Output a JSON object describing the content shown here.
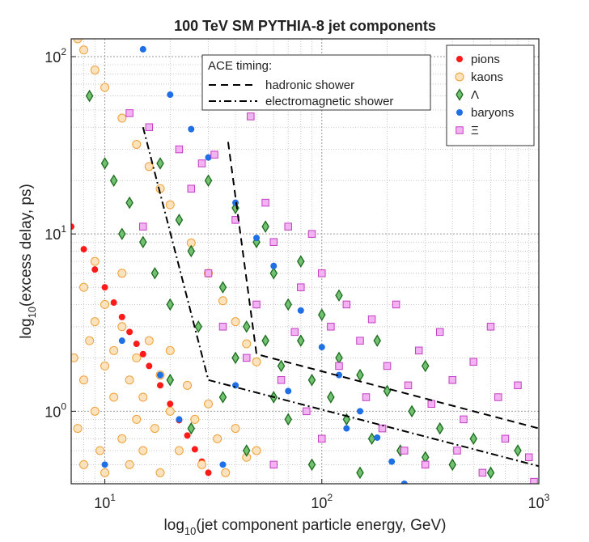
{
  "chart_data": {
    "type": "scatter",
    "title": "100 TeV SM PYTHIA-8 jet components",
    "xlabel": [
      "log",
      "10",
      "(jet component particle energy, GeV)"
    ],
    "ylabel": [
      "log",
      "10",
      "(excess delay, ps)"
    ],
    "xscale": "log",
    "yscale": "log",
    "grid": true,
    "legend": "upper right",
    "xlim": [
      7,
      1000
    ],
    "ylim": [
      0.39,
      126
    ],
    "xticks": [
      {
        "value": 10,
        "label": "10",
        "exp": "1"
      },
      {
        "value": 100,
        "label": "10",
        "exp": "2"
      },
      {
        "value": 1000,
        "label": "10",
        "exp": "3"
      }
    ],
    "yticks": [
      {
        "value": 1,
        "label": "10",
        "exp": "0"
      },
      {
        "value": 10,
        "label": "10",
        "exp": "1"
      },
      {
        "value": 100,
        "label": "10",
        "exp": "2"
      }
    ],
    "series": [
      {
        "name": "pions",
        "marker": "dot",
        "color": "#ff1a1a",
        "edgecolor": "#ff1a1a",
        "x": [
          7,
          8,
          9,
          10,
          11,
          12,
          13,
          14,
          15,
          16,
          18,
          20,
          22,
          24,
          26,
          28,
          30
        ],
        "y": [
          11,
          8.2,
          6.3,
          5.0,
          4.1,
          3.4,
          2.8,
          2.4,
          2.1,
          1.8,
          1.4,
          1.1,
          0.89,
          0.73,
          0.61,
          0.52,
          0.45
        ]
      },
      {
        "name": "kaons",
        "marker": "circle",
        "color": "#fde3bd",
        "edgecolor": "#eea03a",
        "x": [
          7.5,
          8,
          9,
          10,
          12,
          14,
          16,
          18,
          20,
          25,
          30,
          35,
          40,
          45,
          50,
          7.2,
          7.5,
          8,
          8,
          8.5,
          9,
          9,
          9.5,
          10,
          10,
          11,
          11,
          12,
          12,
          13,
          13,
          14,
          14,
          15,
          15,
          16,
          17,
          18,
          18,
          20,
          20,
          22,
          24,
          26,
          28,
          30,
          33,
          36,
          40,
          45,
          50,
          8,
          9,
          10,
          12
        ],
        "y": [
          126,
          109,
          84,
          67,
          45,
          32,
          24,
          18,
          14.6,
          8.9,
          6.0,
          4.2,
          3.2,
          2.4,
          1.9,
          2,
          0.8,
          1.5,
          0.5,
          2.5,
          1,
          3.2,
          0.6,
          1.8,
          0.45,
          2.2,
          1.2,
          0.7,
          3,
          1.5,
          0.5,
          2,
          0.9,
          1.2,
          0.6,
          2.5,
          0.8,
          1.6,
          0.45,
          1,
          2.2,
          0.6,
          1.4,
          0.9,
          0.5,
          1.1,
          0.7,
          0.45,
          0.8,
          0.55,
          0.6,
          5,
          7,
          4,
          6
        ]
      },
      {
        "name": "Λ",
        "marker": "diamond",
        "color": "#72c172",
        "edgecolor": "#1c6b1c",
        "x": [
          8.5,
          10,
          11,
          12,
          13,
          15,
          17,
          18,
          20,
          22,
          25,
          27,
          30,
          35,
          40,
          45,
          50,
          55,
          60,
          65,
          70,
          80,
          90,
          100,
          110,
          120,
          130,
          150,
          170,
          200,
          230,
          260,
          300,
          350,
          400,
          500,
          600,
          800,
          20,
          25,
          35,
          45,
          70,
          90,
          150,
          40,
          60,
          55,
          80,
          120,
          180,
          300
        ],
        "y": [
          60,
          25,
          20,
          10,
          15,
          9,
          6,
          25,
          4,
          12,
          8,
          3,
          20,
          5,
          14,
          3,
          9,
          2.5,
          6,
          1.8,
          4,
          2.5,
          1.5,
          3.5,
          1.2,
          2,
          0.9,
          1.6,
          0.7,
          1.3,
          0.6,
          1,
          0.55,
          0.8,
          0.5,
          0.7,
          0.45,
          0.6,
          1.5,
          0.8,
          1.2,
          0.6,
          0.9,
          0.5,
          0.45,
          2,
          1.2,
          11,
          7,
          4.5,
          2.5,
          1.8
        ]
      },
      {
        "name": "baryons",
        "marker": "dot",
        "color": "#1f6fe6",
        "edgecolor": "#1f6fe6",
        "x": [
          15,
          20,
          25,
          30,
          40,
          50,
          60,
          80,
          100,
          120,
          150,
          180,
          210,
          240,
          10,
          12,
          18,
          22,
          35,
          70,
          130,
          40
        ],
        "y": [
          110,
          61,
          39,
          27,
          15,
          9.5,
          6.6,
          3.7,
          2.3,
          1.6,
          1.0,
          0.71,
          0.52,
          0.39,
          0.5,
          2.5,
          1.6,
          0.9,
          0.5,
          1.3,
          0.8,
          1.4
        ]
      },
      {
        "name": "Ξ",
        "marker": "square",
        "color": "#f3b3f3",
        "edgecolor": "#c23fc2",
        "x": [
          13,
          16,
          22,
          28,
          32,
          40,
          47,
          55,
          60,
          70,
          80,
          90,
          100,
          110,
          130,
          150,
          170,
          200,
          220,
          250,
          280,
          320,
          350,
          400,
          450,
          500,
          600,
          650,
          700,
          800,
          900,
          950,
          30,
          35,
          45,
          50,
          65,
          75,
          85,
          120,
          160,
          190,
          240,
          300,
          420,
          550,
          15,
          25,
          100,
          60
        ],
        "y": [
          48,
          40,
          30,
          25,
          28,
          12,
          46,
          15,
          9,
          11,
          5,
          10,
          6,
          3,
          4,
          2.5,
          3.3,
          1.8,
          4,
          1.4,
          2.2,
          1.1,
          2.8,
          1.5,
          0.9,
          1.9,
          3,
          1.2,
          0.7,
          1.4,
          0.55,
          0.4,
          6,
          3,
          2,
          4,
          1.5,
          2.8,
          1,
          1.8,
          1.2,
          0.8,
          0.6,
          0.5,
          0.6,
          0.45,
          11,
          18,
          0.7,
          0.5
        ]
      }
    ],
    "lines_title": "ACE timing:",
    "lines": [
      {
        "name": "hadronic shower",
        "style": "dashed",
        "color": "#000000",
        "x": [
          37,
          50,
          1000
        ],
        "y": [
          33,
          2.1,
          0.8
        ]
      },
      {
        "name": "electromagnetic shower",
        "style": "dashdot",
        "color": "#000000",
        "x": [
          15,
          30,
          1000
        ],
        "y": [
          40,
          1.5,
          0.49
        ]
      }
    ]
  }
}
